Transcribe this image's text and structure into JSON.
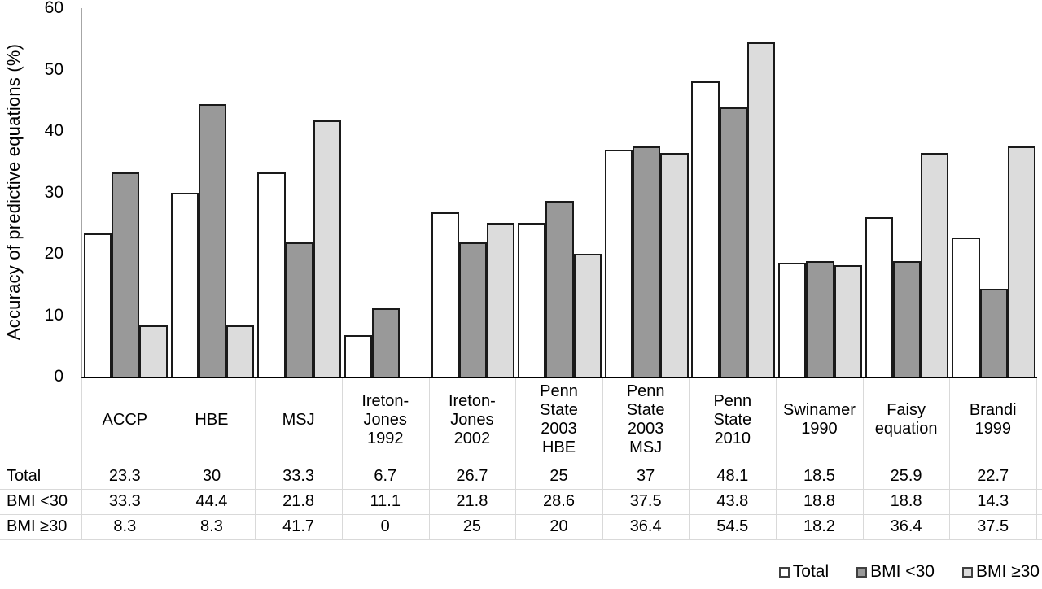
{
  "chart_data": {
    "type": "bar",
    "title": "",
    "ylabel": "Accuracy of predictive equations (%)",
    "xlabel": "",
    "ylim": [
      0,
      60
    ],
    "yticks": [
      "0",
      "10",
      "20",
      "30",
      "40",
      "50",
      "60"
    ],
    "grid": false,
    "legend_position": "bottom-right",
    "categories": [
      "ACCP",
      "HBE",
      "MSJ",
      "Ireton-Jones 1992",
      "Ireton-Jones 2002",
      "Penn State 2003 HBE",
      "Penn State 2003 MSJ",
      "Penn State 2010",
      "Swinamer 1990",
      "Faisy equation",
      "Brandi 1999"
    ],
    "categories_display": [
      "ACCP",
      "HBE",
      "MSJ",
      "Ireton-\nJones\n1992",
      "Ireton-\nJones\n2002",
      "Penn\nState\n2003\nHBE",
      "Penn\nState\n2003\nMSJ",
      "Penn\nState\n2010",
      "Swinamer\n1990",
      "Faisy\nequation",
      "Brandi\n1999"
    ],
    "series": [
      {
        "name": "Total",
        "color": "#ffffff",
        "values": [
          23.3,
          30,
          33.3,
          6.7,
          26.7,
          25,
          37,
          48.1,
          18.5,
          25.9,
          22.7
        ]
      },
      {
        "name": "BMI <30",
        "color": "#999999",
        "values": [
          33.3,
          44.4,
          21.8,
          11.1,
          21.8,
          28.6,
          37.5,
          43.8,
          18.8,
          18.8,
          14.3
        ]
      },
      {
        "name": "BMI ≥30",
        "color": "#dcdcdc",
        "values": [
          8.3,
          8.3,
          41.7,
          0,
          25,
          20,
          36.4,
          54.5,
          18.2,
          36.4,
          37.5
        ]
      }
    ]
  },
  "table": {
    "row_labels": [
      "Total",
      "BMI <30",
      "BMI ≥30"
    ],
    "values": [
      [
        "23.3",
        "30",
        "33.3",
        "6.7",
        "26.7",
        "25",
        "37",
        "48.1",
        "18.5",
        "25.9",
        "22.7"
      ],
      [
        "33.3",
        "44.4",
        "21.8",
        "11.1",
        "21.8",
        "28.6",
        "37.5",
        "43.8",
        "18.8",
        "18.8",
        "14.3"
      ],
      [
        "8.3",
        "8.3",
        "41.7",
        "0",
        "25",
        "20",
        "36.4",
        "54.5",
        "18.2",
        "36.4",
        "37.5"
      ]
    ]
  },
  "colors": {
    "bar_border": "#1a1a1a",
    "axis_line": "#a6a6a6",
    "baseline": "#000000",
    "table_grid": "#d9d9d9",
    "text": "#000000",
    "background": "#ffffff"
  }
}
